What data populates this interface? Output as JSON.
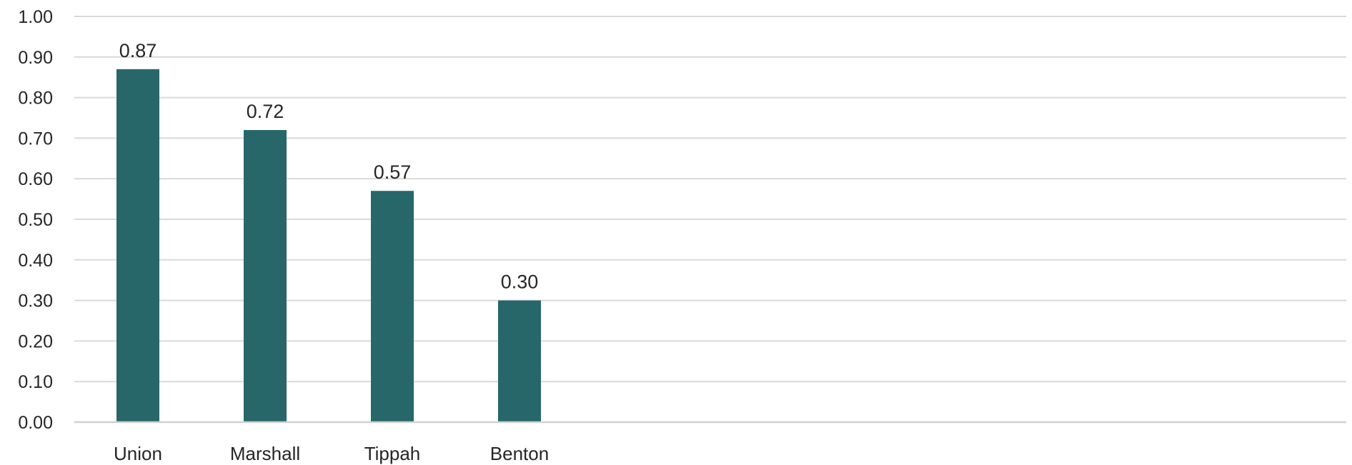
{
  "chart_data": {
    "type": "bar",
    "title": "",
    "xlabel": "",
    "ylabel": "",
    "categories": [
      "Union",
      "Marshall",
      "Tippah",
      "Benton"
    ],
    "values": [
      0.87,
      0.72,
      0.57,
      0.3
    ],
    "data_labels": [
      "0.87",
      "0.72",
      "0.57",
      "0.30"
    ],
    "ylim": [
      0,
      1.0
    ],
    "yticks": [
      0.0,
      0.1,
      0.2,
      0.3,
      0.4,
      0.5,
      0.6,
      0.7,
      0.8,
      0.9,
      1.0
    ],
    "ytick_labels": [
      "0.00",
      "0.10",
      "0.20",
      "0.30",
      "0.40",
      "0.50",
      "0.60",
      "0.70",
      "0.80",
      "0.90",
      "1.00"
    ],
    "grid": true,
    "legend": "none",
    "bar_color": "#27676a",
    "slot_count": 10
  }
}
